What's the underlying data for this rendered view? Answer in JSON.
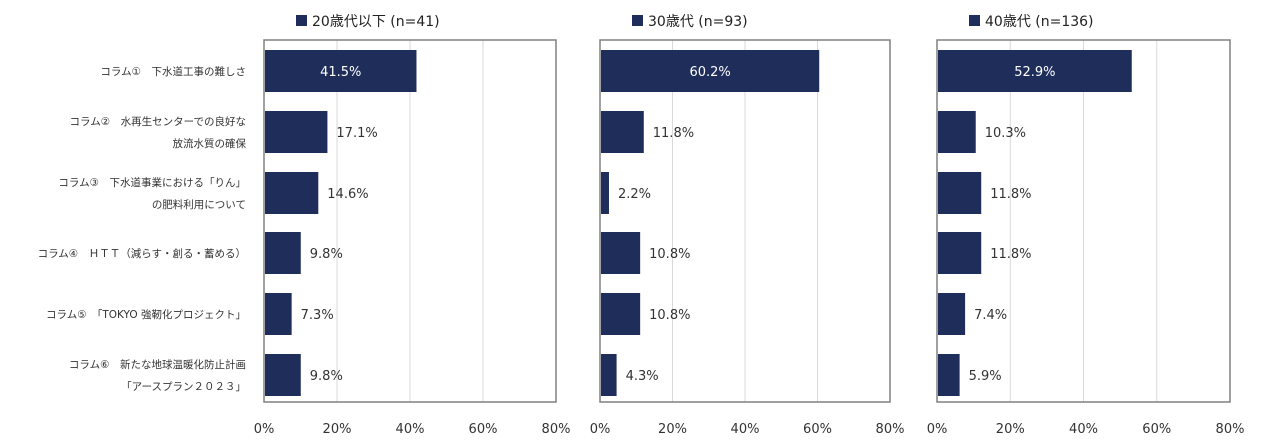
{
  "chart_data": {
    "type": "bar",
    "orientation": "horizontal",
    "categories": [
      [
        "コラム①　下水道工事の難しさ"
      ],
      [
        "コラム②　水再生センターでの良好な",
        "放流水質の確保"
      ],
      [
        "コラム③　下水道事業における「りん」",
        "の肥料利用について"
      ],
      [
        "コラム④　ＨＴＴ（減らす・創る・蓄める）"
      ],
      [
        "コラム⑤　「TOKYO 強靭化プロジェクト」"
      ],
      [
        "コラム⑥　新たな地球温暖化防止計画",
        "「アースプラン２０２３」"
      ]
    ],
    "x_ticks": [
      "0%",
      "20%",
      "40%",
      "60%",
      "80%"
    ],
    "xlim": [
      0,
      80
    ],
    "grid": true,
    "panels": [
      {
        "name": "20歳代以下 (n=41)",
        "values": [
          41.5,
          17.1,
          14.6,
          9.8,
          7.3,
          9.8
        ],
        "labels": [
          "41.5%",
          "17.1%",
          "14.6%",
          "9.8%",
          "7.3%",
          "9.8%"
        ]
      },
      {
        "name": "30歳代 (n=93)",
        "values": [
          60.2,
          11.8,
          2.2,
          10.8,
          10.8,
          4.3
        ],
        "labels": [
          "60.2%",
          "11.8%",
          "2.2%",
          "10.8%",
          "10.8%",
          "4.3%"
        ]
      },
      {
        "name": "40歳代 (n=136)",
        "values": [
          52.9,
          10.3,
          11.8,
          11.8,
          7.4,
          5.9
        ],
        "labels": [
          "52.9%",
          "10.3%",
          "11.8%",
          "11.8%",
          "7.4%",
          "5.9%"
        ]
      }
    ],
    "colors": {
      "bar": "#1f2d5a",
      "grid": "#d9d9d9",
      "axis": "#808080"
    }
  }
}
